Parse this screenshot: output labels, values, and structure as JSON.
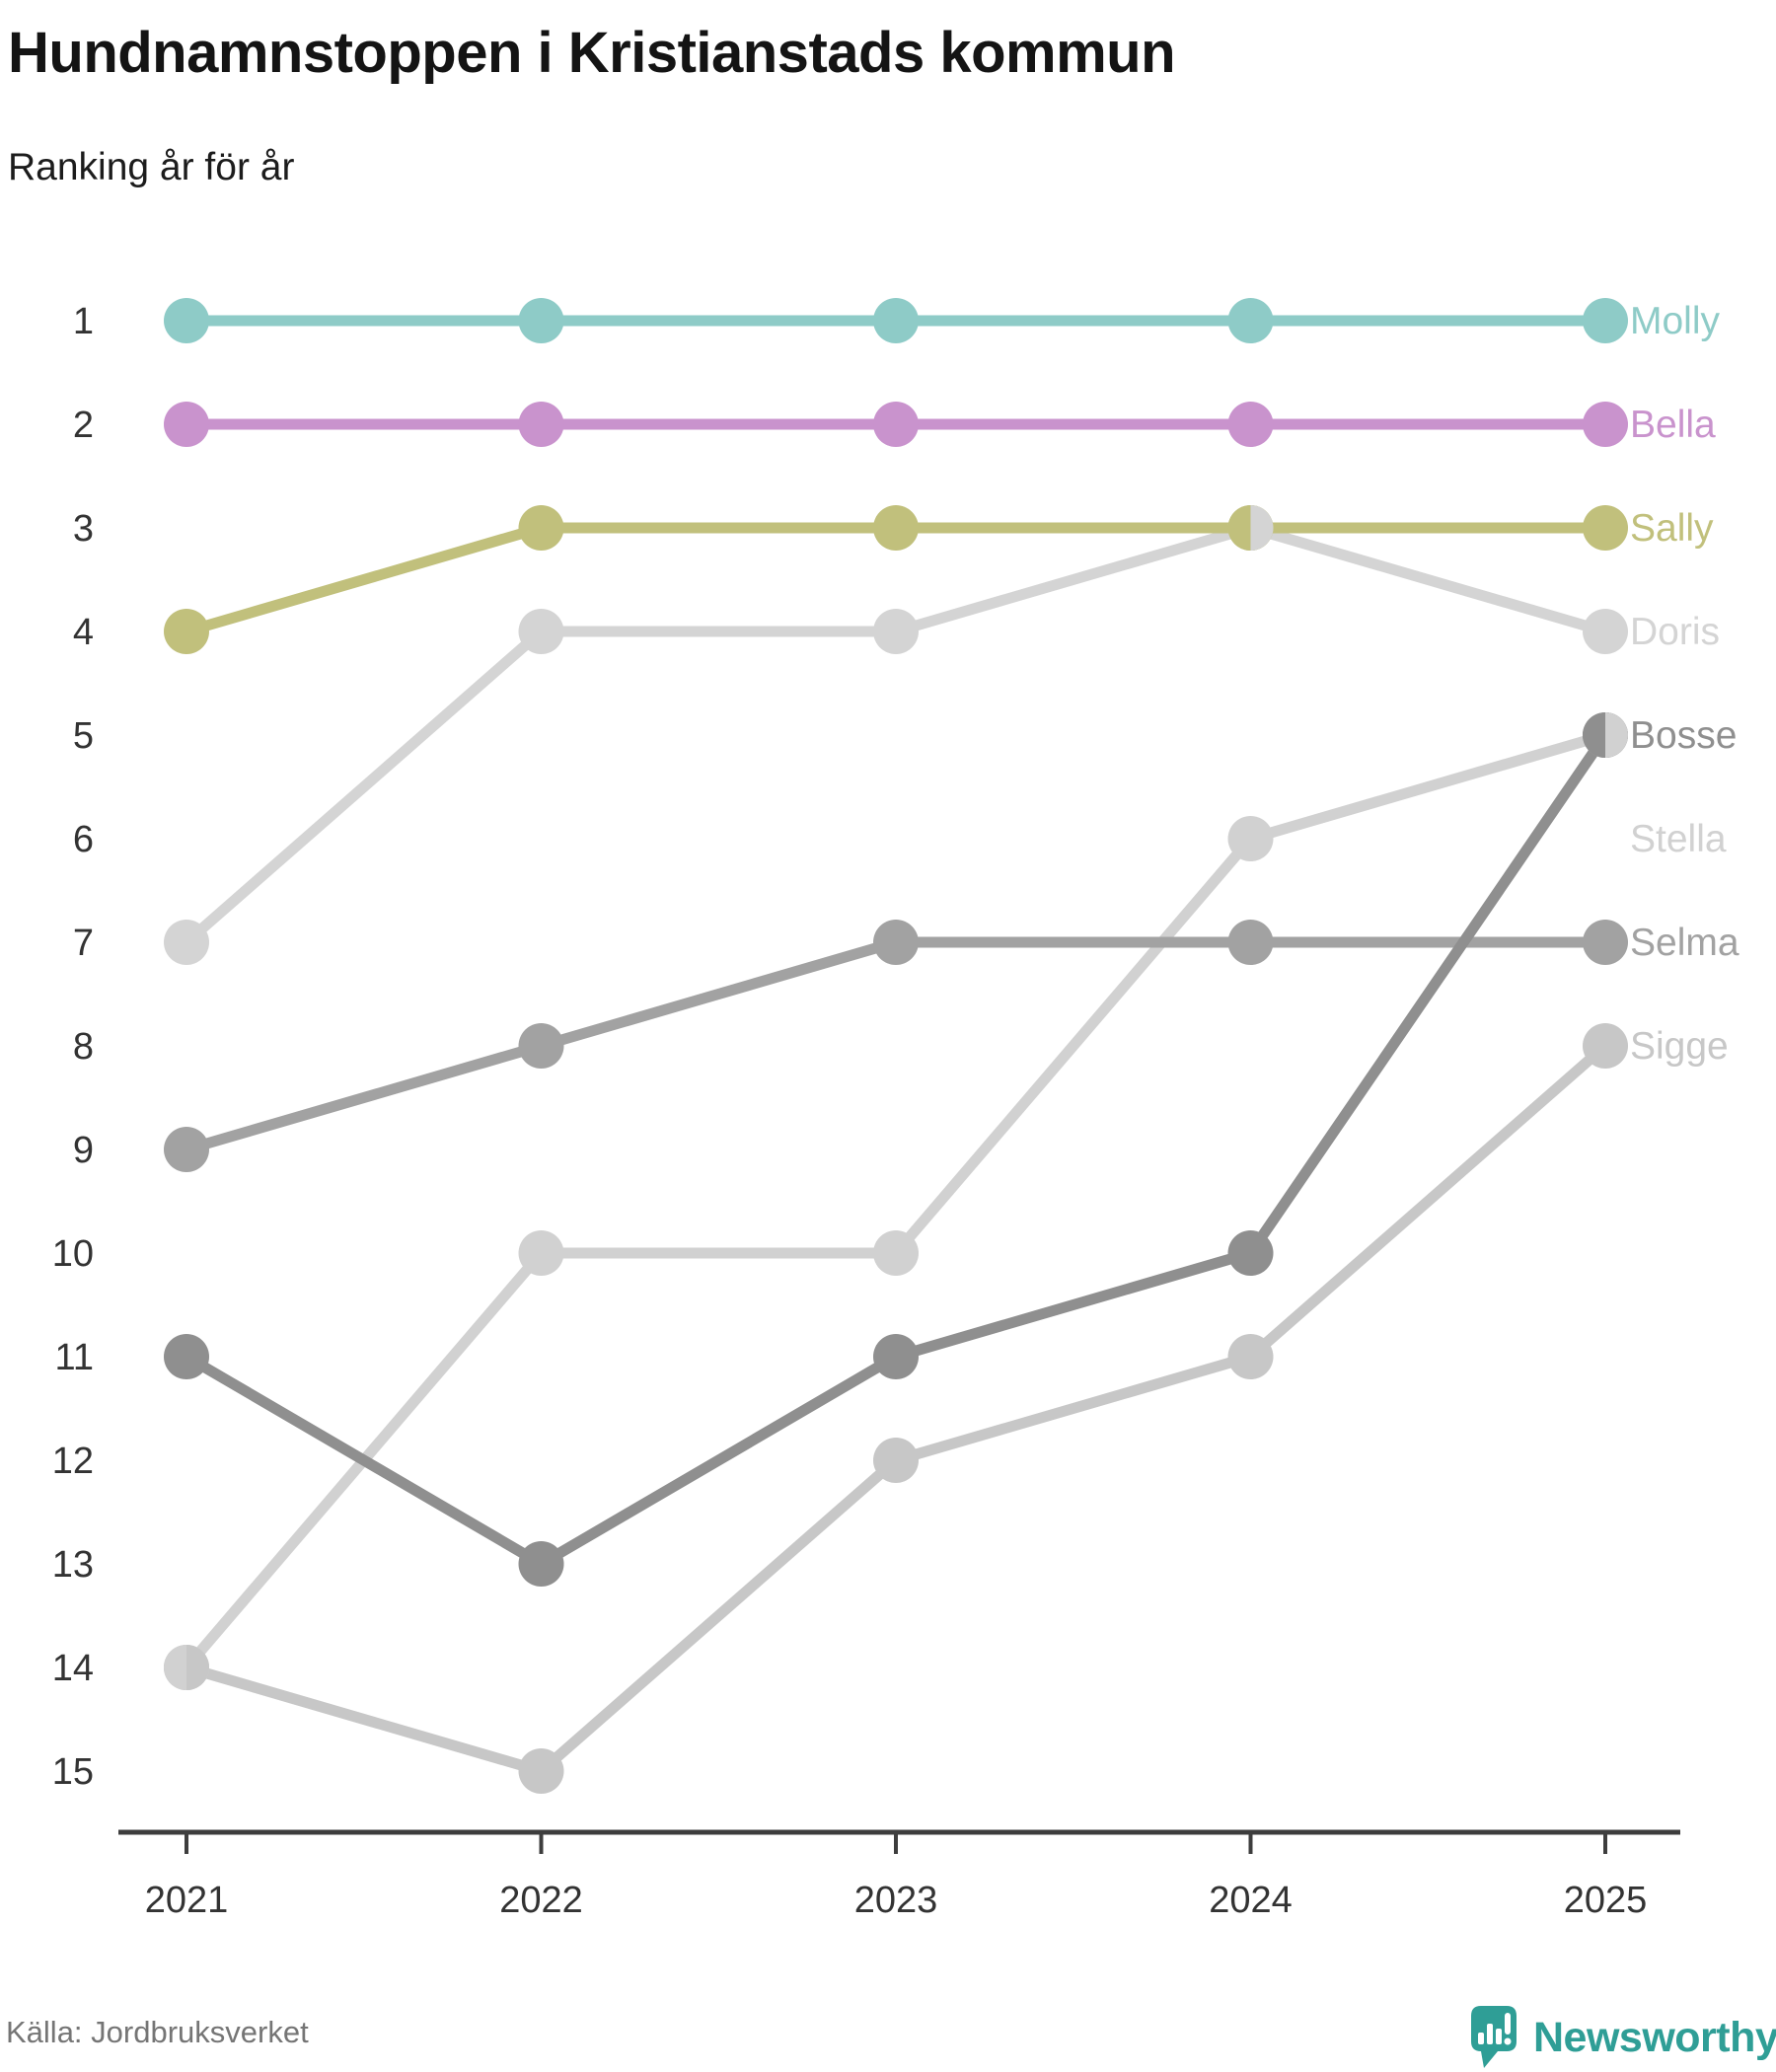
{
  "chart_data": {
    "type": "line",
    "variant": "bump-ranking",
    "title": "Hundnamnstoppen i Kristianstads kommun",
    "subtitle": "Ranking år för år",
    "years": [
      "2021",
      "2022",
      "2023",
      "2024",
      "2025"
    ],
    "rank_ticks": [
      1,
      2,
      3,
      4,
      5,
      6,
      7,
      8,
      9,
      10,
      11,
      12,
      13,
      14,
      15
    ],
    "ylim": [
      1,
      15
    ],
    "y_inverted": true,
    "grid": false,
    "legend_position": "end-of-line-labels-right",
    "series": [
      {
        "name": "Molly",
        "color": "#8ecbc7",
        "values": [
          1,
          1,
          1,
          1,
          1
        ]
      },
      {
        "name": "Bella",
        "color": "#c993cd",
        "values": [
          2,
          2,
          2,
          2,
          2
        ]
      },
      {
        "name": "Sally",
        "color": "#c1c07c",
        "values": [
          4,
          3,
          3,
          3,
          3
        ]
      },
      {
        "name": "Doris",
        "color": "#d4d4d4",
        "values": [
          7,
          4,
          4,
          3,
          4
        ]
      },
      {
        "name": "Bosse",
        "color": "#8f8f8f",
        "values": [
          11,
          13,
          11,
          10,
          5
        ]
      },
      {
        "name": "Stella",
        "color": "#d1d1d1",
        "values": [
          14,
          10,
          10,
          6,
          5
        ],
        "label_rank": 6
      },
      {
        "name": "Selma",
        "color": "#a2a2a2",
        "values": [
          9,
          8,
          7,
          7,
          7
        ]
      },
      {
        "name": "Sigge",
        "color": "#c7c7c7",
        "values": [
          14,
          15,
          12,
          11,
          8
        ]
      }
    ],
    "draw_order": [
      "Stella",
      "Sigge",
      "Doris",
      "Selma",
      "Bosse",
      "Sally",
      "Bella",
      "Molly"
    ],
    "ties": [
      {
        "year": "2021",
        "rank": 14,
        "left": "Stella",
        "right": "Sigge"
      },
      {
        "year": "2024",
        "rank": 3,
        "left": "Sally",
        "right": "Doris"
      },
      {
        "year": "2025",
        "rank": 5,
        "left": "Bosse",
        "right": "Stella"
      }
    ],
    "axis_color": "#3d3d3d",
    "tick_label_color": "#333333"
  },
  "footer": {
    "source": "Källa: Jordbruksverket",
    "brand": "Newsworthy",
    "brand_color": "#2f9e96"
  }
}
